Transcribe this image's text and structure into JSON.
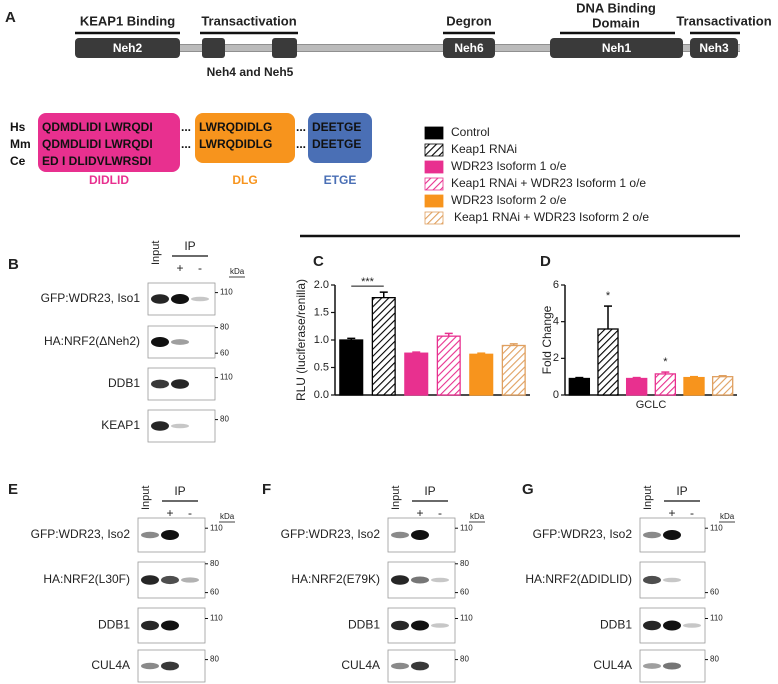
{
  "panel_a": {
    "letter": "A",
    "regions": [
      "KEAP1 Binding",
      "Transactivation",
      "Degron",
      "Transactivation"
    ],
    "dna_binding": [
      "DNA Binding",
      "Domain"
    ],
    "domains": [
      "Neh2",
      "Neh6",
      "Neh1",
      "Neh3"
    ],
    "neh45": "Neh4 and Neh5",
    "species": [
      "Hs",
      "Mm",
      "Ce"
    ],
    "separator": "...",
    "motifs": [
      {
        "rows": [
          "QDMDLIDI LWRQDI",
          "QDMDLIDI LWRQDI",
          "ED I DLIDVLWRSDI"
        ],
        "name": "DIDLID"
      },
      {
        "rows": [
          "LWRQDIDLG",
          "LWRQDIDLG"
        ],
        "name": "DLG"
      },
      {
        "rows": [
          "DEETGE",
          "DEETGE"
        ],
        "name": "ETGE"
      }
    ]
  },
  "legend": [
    {
      "name": "Control",
      "color": "#000000",
      "hatch": false
    },
    {
      "name": "Keap1 RNAi",
      "color": "#000000",
      "hatch": true
    },
    {
      "name": "WDR23 Isoform 1 o/e",
      "color": "#e8308f",
      "hatch": false
    },
    {
      "name": "Keap1 RNAi + WDR23 Isoform 1 o/e",
      "color": "#e8308f",
      "hatch": true
    },
    {
      "name": "WDR23 Isoform 2 o/e",
      "color": "#f7941d",
      "hatch": false
    },
    {
      "name": "Keap1 RNAi + WDR23 Isoform 2 o/e",
      "color": "#e0a060",
      "hatch": true
    }
  ],
  "chart_data": [
    {
      "type": "bar",
      "panel": "C",
      "ylabel": "RLU (luciferase/renilla)",
      "values": [
        1.0,
        1.77,
        0.76,
        1.07,
        0.74,
        0.9
      ],
      "errors": [
        0.03,
        0.1,
        0.02,
        0.05,
        0.02,
        0.03
      ],
      "ylim": [
        0,
        2
      ],
      "yticks": [
        {
          "value": 0,
          "label": "0.0"
        },
        0.5,
        {
          "value": 1,
          "label": "1.0"
        },
        1.5,
        {
          "value": 2,
          "label": "2.0"
        }
      ],
      "annotations": [
        {
          "text": "***",
          "bars": [
            0,
            1
          ]
        }
      ]
    },
    {
      "type": "bar",
      "panel": "D",
      "ylabel": "Fold Change",
      "xlabel": "GCLC",
      "values": [
        0.9,
        3.6,
        0.9,
        1.15,
        0.95,
        1.0
      ],
      "errors": [
        0.05,
        1.25,
        0.05,
        0.1,
        0.05,
        0.05
      ],
      "ylim": [
        0,
        6
      ],
      "yticks": [
        0,
        2,
        4,
        6
      ],
      "annotations": [
        {
          "text": "*",
          "bars": [
            1
          ]
        },
        {
          "text": "*",
          "bars": [
            3
          ]
        }
      ]
    }
  ],
  "blots": [
    {
      "letter": "B",
      "input": "Input",
      "ip": "IP",
      "plus": "+",
      "minus": "-",
      "kda": "kDa",
      "rows": [
        {
          "label": "GFP:WDR23, Iso1",
          "markers": [
            110
          ]
        },
        {
          "label": "HA:NRF2(ΔNeh2)",
          "markers": [
            80,
            60
          ]
        },
        {
          "label": "DDB1",
          "markers": [
            110
          ]
        },
        {
          "label": "KEAP1",
          "markers": [
            80
          ]
        }
      ]
    },
    {
      "letter": "E",
      "input": "Input",
      "ip": "IP",
      "plus": "+",
      "minus": "-",
      "kda": "kDa",
      "rows": [
        {
          "label": "GFP:WDR23, Iso2",
          "markers": [
            110
          ]
        },
        {
          "label": "HA:NRF2(L30F)",
          "markers": [
            80,
            60
          ]
        },
        {
          "label": "DDB1",
          "markers": [
            110
          ]
        },
        {
          "label": "CUL4A",
          "markers": [
            80
          ]
        }
      ]
    },
    {
      "letter": "F",
      "input": "Input",
      "ip": "IP",
      "plus": "+",
      "minus": "-",
      "kda": "kDa",
      "rows": [
        {
          "label": "GFP:WDR23, Iso2",
          "markers": [
            110
          ]
        },
        {
          "label": "HA:NRF2(E79K)",
          "markers": [
            80,
            60
          ]
        },
        {
          "label": "DDB1",
          "markers": [
            110
          ]
        },
        {
          "label": "CUL4A",
          "markers": [
            80
          ]
        }
      ]
    },
    {
      "letter": "G",
      "input": "Input",
      "ip": "IP",
      "plus": "+",
      "minus": "-",
      "kda": "kDa",
      "rows": [
        {
          "label": "GFP:WDR23, Iso2",
          "markers": [
            110
          ]
        },
        {
          "label": "HA:NRF2(ΔDIDLID)",
          "markers": [
            60
          ]
        },
        {
          "label": "DDB1",
          "markers": [
            110
          ]
        },
        {
          "label": "CUL4A",
          "markers": [
            80
          ]
        }
      ]
    }
  ]
}
